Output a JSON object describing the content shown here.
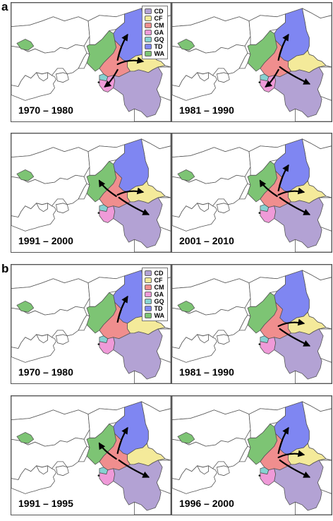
{
  "sections": [
    {
      "label": "a",
      "panels": [
        {
          "period": "1970 – 1980",
          "flows": [
            "CM-TD",
            "CM-CF",
            "CM-GA"
          ]
        },
        {
          "period": "1981 – 1990",
          "flows": [
            "CM-TD",
            "CM-CD",
            "CM-GA"
          ]
        },
        {
          "period": "1991 – 2000",
          "flows": [
            "CM-WA",
            "CM-CF",
            "CM-CD"
          ]
        },
        {
          "period": "2001 – 2010",
          "flows": [
            "CM-TD",
            "CM-WA",
            "CM-CF",
            "CM-CD"
          ]
        }
      ]
    },
    {
      "label": "b",
      "panels": [
        {
          "period": "1970 – 1980",
          "flows": [
            "CM-TD"
          ]
        },
        {
          "period": "1981 – 1990",
          "flows": [
            "CM-CF",
            "CM-CD"
          ]
        },
        {
          "period": "1991 – 1995",
          "flows": [
            "CM-WA",
            "CM-TD",
            "CM-CD"
          ]
        },
        {
          "period": "1996 – 2000",
          "flows": [
            "CM-TD",
            "CM-CF",
            "CM-CD"
          ]
        }
      ]
    }
  ],
  "legend": [
    {
      "code": "CD",
      "color": "#b3a2d4"
    },
    {
      "code": "CF",
      "color": "#f4ea9a"
    },
    {
      "code": "CM",
      "color": "#f08e8e"
    },
    {
      "code": "GA",
      "color": "#ef9ad8"
    },
    {
      "code": "GQ",
      "color": "#86d2d2"
    },
    {
      "code": "TD",
      "color": "#7f86f2"
    },
    {
      "code": "WA",
      "color": "#7dc474"
    }
  ],
  "base_map_color": "#ffffff",
  "border_color": "#555555",
  "arrow_color": "#000000"
}
